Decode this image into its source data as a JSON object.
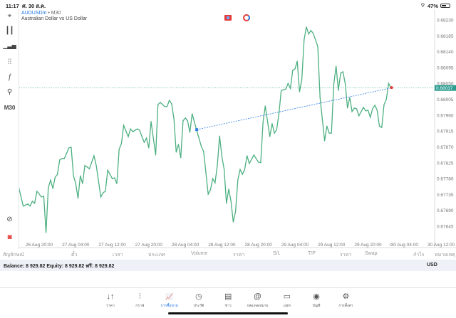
{
  "status_bar": {
    "time": "11:17",
    "date": "ศ. 30 ส.ค.",
    "battery": "47%",
    "battery_level": 0.47
  },
  "symbol": {
    "name": "AUDUSDm",
    "timeframe": "M30",
    "separator": "•",
    "description": "Australian Dollar vs US Dollar"
  },
  "toolbar": {
    "timeframe": "M30",
    "icons": [
      "crosshair-icon",
      "candles-icon",
      "bars-icon",
      "indicators-icon",
      "function-icon",
      "objects-icon",
      "zoom-chart-icon",
      "app-logo-icon"
    ]
  },
  "colors": {
    "line": "#4caf80",
    "current_price": "#2a9d8f",
    "trendline": "#2d7fe0",
    "marker": "#e53935",
    "accent": "#1a73e8"
  },
  "chart_data": {
    "type": "line",
    "timeframe": "M30",
    "current_price": "0.68037",
    "y_ticks": [
      "0.68230",
      "0.68185",
      "0.68140",
      "0.68095",
      "0.68050",
      "0.68005",
      "0.67960",
      "0.67915",
      "0.67870",
      "0.67825",
      "0.67780",
      "0.67735",
      "0.67690",
      "0.67645"
    ],
    "x_ticks": [
      "26 Aug 20:00",
      "27 Aug 04:00",
      "27 Aug 12:00",
      "27 Aug 20:00",
      "28 Aug 04:00",
      "28 Aug 12:00",
      "28 Aug 20:00",
      "29 Aug 04:00",
      "29 Aug 12:00",
      "29 Aug 20:00",
      "30 Aug 04:00",
      "30 Aug 12:00"
    ],
    "series": [
      [
        "26 Aug 15:30",
        0.67756
      ],
      [
        "26 Aug 16:30",
        0.67702
      ],
      [
        "26 Aug 17:30",
        0.67708
      ],
      [
        "26 Aug 18:00",
        0.67702
      ],
      [
        "26 Aug 18:30",
        0.67716
      ],
      [
        "26 Aug 19:00",
        0.6771
      ],
      [
        "26 Aug 19:30",
        0.67744
      ],
      [
        "26 Aug 20:30",
        0.67728
      ],
      [
        "26 Aug 21:00",
        0.6773
      ],
      [
        "26 Aug 21:30",
        0.67627
      ],
      [
        "26 Aug 22:00",
        0.67754
      ],
      [
        "26 Aug 22:30",
        0.67776
      ],
      [
        "26 Aug 23:00",
        0.67752
      ],
      [
        "26 Aug 23:30",
        0.67784
      ],
      [
        "27 Aug 00:00",
        0.67792
      ],
      [
        "27 Aug 00:30",
        0.67833
      ],
      [
        "27 Aug 01:00",
        0.67837
      ],
      [
        "27 Aug 01:30",
        0.67837
      ],
      [
        "27 Aug 02:30",
        0.67867
      ],
      [
        "27 Aug 03:00",
        0.67869
      ],
      [
        "27 Aug 03:30",
        0.67788
      ],
      [
        "27 Aug 04:00",
        0.67766
      ],
      [
        "27 Aug 04:30",
        0.67724
      ],
      [
        "27 Aug 05:00",
        0.67788
      ],
      [
        "27 Aug 05:30",
        0.67766
      ],
      [
        "27 Aug 06:00",
        0.67817
      ],
      [
        "27 Aug 06:30",
        0.67813
      ],
      [
        "27 Aug 07:00",
        0.67808
      ],
      [
        "27 Aug 08:00",
        0.67845
      ],
      [
        "27 Aug 08:30",
        0.67817
      ],
      [
        "27 Aug 09:30",
        0.67728
      ],
      [
        "27 Aug 10:00",
        0.6774
      ],
      [
        "27 Aug 10:30",
        0.67744
      ],
      [
        "27 Aug 11:00",
        0.67804
      ],
      [
        "27 Aug 11:30",
        0.67792
      ],
      [
        "27 Aug 12:00",
        0.6778
      ],
      [
        "27 Aug 12:30",
        0.67782
      ],
      [
        "27 Aug 13:00",
        0.67766
      ],
      [
        "27 Aug 13:30",
        0.67863
      ],
      [
        "27 Aug 14:00",
        0.67879
      ],
      [
        "27 Aug 14:30",
        0.67931
      ],
      [
        "27 Aug 15:30",
        0.67899
      ],
      [
        "27 Aug 16:00",
        0.67921
      ],
      [
        "27 Aug 16:30",
        0.67913
      ],
      [
        "27 Aug 17:30",
        0.67921
      ],
      [
        "27 Aug 18:00",
        0.67917
      ],
      [
        "27 Aug 18:30",
        0.67899
      ],
      [
        "27 Aug 19:00",
        0.67883
      ],
      [
        "27 Aug 19:30",
        0.67895
      ],
      [
        "27 Aug 20:00",
        0.67867
      ],
      [
        "27 Aug 20:30",
        0.67942
      ],
      [
        "27 Aug 21:30",
        0.67847
      ],
      [
        "27 Aug 22:00",
        0.6799
      ],
      [
        "27 Aug 22:30",
        0.67996
      ],
      [
        "27 Aug 23:30",
        0.67984
      ],
      [
        "28 Aug 00:00",
        0.67984
      ],
      [
        "28 Aug 00:30",
        0.68002
      ],
      [
        "28 Aug 01:00",
        0.67992
      ],
      [
        "28 Aug 01:30",
        0.6795
      ],
      [
        "28 Aug 02:00",
        0.67855
      ],
      [
        "28 Aug 02:30",
        0.67877
      ],
      [
        "28 Aug 03:00",
        0.67839
      ],
      [
        "28 Aug 03:30",
        0.67944
      ],
      [
        "28 Aug 04:00",
        0.67952
      ],
      [
        "28 Aug 04:30",
        0.67944
      ],
      [
        "28 Aug 05:00",
        0.67911
      ],
      [
        "28 Aug 05:30",
        0.67964
      ],
      [
        "28 Aug 06:00",
        0.6794
      ],
      [
        "28 Aug 06:30",
        0.67917
      ],
      [
        "28 Aug 07:30",
        0.67871
      ],
      [
        "28 Aug 08:00",
        0.67857
      ],
      [
        "28 Aug 09:00",
        0.67736
      ],
      [
        "28 Aug 09:30",
        0.67748
      ],
      [
        "28 Aug 10:00",
        0.6778
      ],
      [
        "28 Aug 10:30",
        0.67768
      ],
      [
        "28 Aug 11:00",
        0.67817
      ],
      [
        "28 Aug 11:30",
        0.67901
      ],
      [
        "28 Aug 12:00",
        0.67843
      ],
      [
        "28 Aug 12:30",
        0.67806
      ],
      [
        "28 Aug 13:00",
        0.6771
      ],
      [
        "28 Aug 13:30",
        0.6775
      ],
      [
        "28 Aug 14:00",
        0.67716
      ],
      [
        "28 Aug 14:30",
        0.67657
      ],
      [
        "28 Aug 15:00",
        0.67687
      ],
      [
        "28 Aug 15:30",
        0.67776
      ],
      [
        "28 Aug 16:00",
        0.67806
      ],
      [
        "28 Aug 16:30",
        0.67792
      ],
      [
        "28 Aug 17:00",
        0.67806
      ],
      [
        "28 Aug 17:30",
        0.67845
      ],
      [
        "28 Aug 18:00",
        0.67823
      ],
      [
        "28 Aug 19:00",
        0.67847
      ],
      [
        "28 Aug 20:00",
        0.67827
      ],
      [
        "28 Aug 20:30",
        0.67825
      ],
      [
        "28 Aug 21:00",
        0.67938
      ],
      [
        "28 Aug 21:30",
        0.67986
      ],
      [
        "28 Aug 22:30",
        0.67899
      ],
      [
        "28 Aug 23:00",
        0.67936
      ],
      [
        "28 Aug 23:30",
        0.67909
      ],
      [
        "29 Aug 00:00",
        0.67919
      ],
      [
        "29 Aug 00:30",
        0.67964
      ],
      [
        "29 Aug 01:00",
        0.6803
      ],
      [
        "29 Aug 02:00",
        0.68034
      ],
      [
        "29 Aug 02:30",
        0.6805
      ],
      [
        "29 Aug 03:00",
        0.68036
      ],
      [
        "29 Aug 03:30",
        0.68087
      ],
      [
        "29 Aug 04:00",
        0.68091
      ],
      [
        "29 Aug 04:30",
        0.68113
      ],
      [
        "29 Aug 05:00",
        0.68026
      ],
      [
        "29 Aug 05:30",
        0.68061
      ],
      [
        "29 Aug 06:00",
        0.68174
      ],
      [
        "29 Aug 06:30",
        0.6821
      ],
      [
        "29 Aug 07:00",
        0.6819
      ],
      [
        "29 Aug 07:30",
        0.682
      ],
      [
        "29 Aug 08:00",
        0.68192
      ],
      [
        "29 Aug 09:00",
        0.68155
      ],
      [
        "29 Aug 09:30",
        0.6801
      ],
      [
        "29 Aug 10:30",
        0.67887
      ],
      [
        "29 Aug 11:00",
        0.67929
      ],
      [
        "29 Aug 11:30",
        0.67909
      ],
      [
        "29 Aug 12:00",
        0.67909
      ],
      [
        "29 Aug 12:30",
        0.68046
      ],
      [
        "29 Aug 13:00",
        0.68099
      ],
      [
        "29 Aug 13:30",
        0.6803
      ],
      [
        "29 Aug 14:00",
        0.68079
      ],
      [
        "29 Aug 14:30",
        0.68083
      ],
      [
        "29 Aug 15:00",
        0.6805
      ],
      [
        "29 Aug 15:30",
        0.6798
      ],
      [
        "29 Aug 16:00",
        0.6801
      ],
      [
        "29 Aug 16:30",
        0.6797
      ],
      [
        "29 Aug 17:00",
        0.6798
      ],
      [
        "29 Aug 17:30",
        0.67978
      ],
      [
        "29 Aug 18:00",
        0.67958
      ],
      [
        "29 Aug 19:00",
        0.67982
      ],
      [
        "29 Aug 19:30",
        0.67972
      ],
      [
        "29 Aug 20:00",
        0.67974
      ],
      [
        "29 Aug 20:30",
        0.67954
      ],
      [
        "29 Aug 21:00",
        0.67978
      ],
      [
        "29 Aug 21:30",
        0.67988
      ],
      [
        "29 Aug 22:00",
        0.67974
      ],
      [
        "29 Aug 22:30",
        0.67929
      ],
      [
        "29 Aug 23:00",
        0.67925
      ],
      [
        "29 Aug 23:30",
        0.6799
      ],
      [
        "30 Aug 00:00",
        0.68004
      ],
      [
        "30 Aug 00:30",
        0.6805
      ],
      [
        "30 Aug 01:00",
        0.68037
      ]
    ],
    "trendline": [
      [
        "28 Aug 06:30",
        0.67919
      ],
      [
        "30 Aug 01:00",
        0.68037
      ]
    ]
  },
  "positions": {
    "columns": [
      "สัญลักษณ์",
      "ตั๋ว",
      "เวลา",
      "ประเภท",
      "Volume",
      "ราคา",
      "S/L",
      "T/P",
      "ราคา",
      "Swap",
      "กำไร",
      "หมายเหตุ"
    ]
  },
  "balance": {
    "text": "Balance: 8 929.82 Equity: 8 929.82 ฟรี: 8 929.82",
    "currency": "USD"
  },
  "tabs": [
    {
      "label": "ราคา",
      "icon": "quotes-icon",
      "glyph": "↓↑"
    },
    {
      "label": "กราฟ",
      "icon": "chart-icon",
      "glyph": "⫶"
    },
    {
      "label": "การซื้อขาย",
      "icon": "trade-icon",
      "glyph": "📈",
      "active": true
    },
    {
      "label": "ประวัติ",
      "icon": "history-icon",
      "glyph": "◷"
    },
    {
      "label": "ข่าว",
      "icon": "news-icon",
      "glyph": "▤"
    },
    {
      "label": "กล่องจดหมาย",
      "icon": "mailbox-icon",
      "glyph": "@"
    },
    {
      "label": "แชท",
      "icon": "chat-icon",
      "glyph": "▭"
    },
    {
      "label": "บัญชี",
      "icon": "account-icon",
      "glyph": "◉"
    },
    {
      "label": "การตั้งค่า",
      "icon": "settings-icon",
      "glyph": "⚙"
    }
  ]
}
